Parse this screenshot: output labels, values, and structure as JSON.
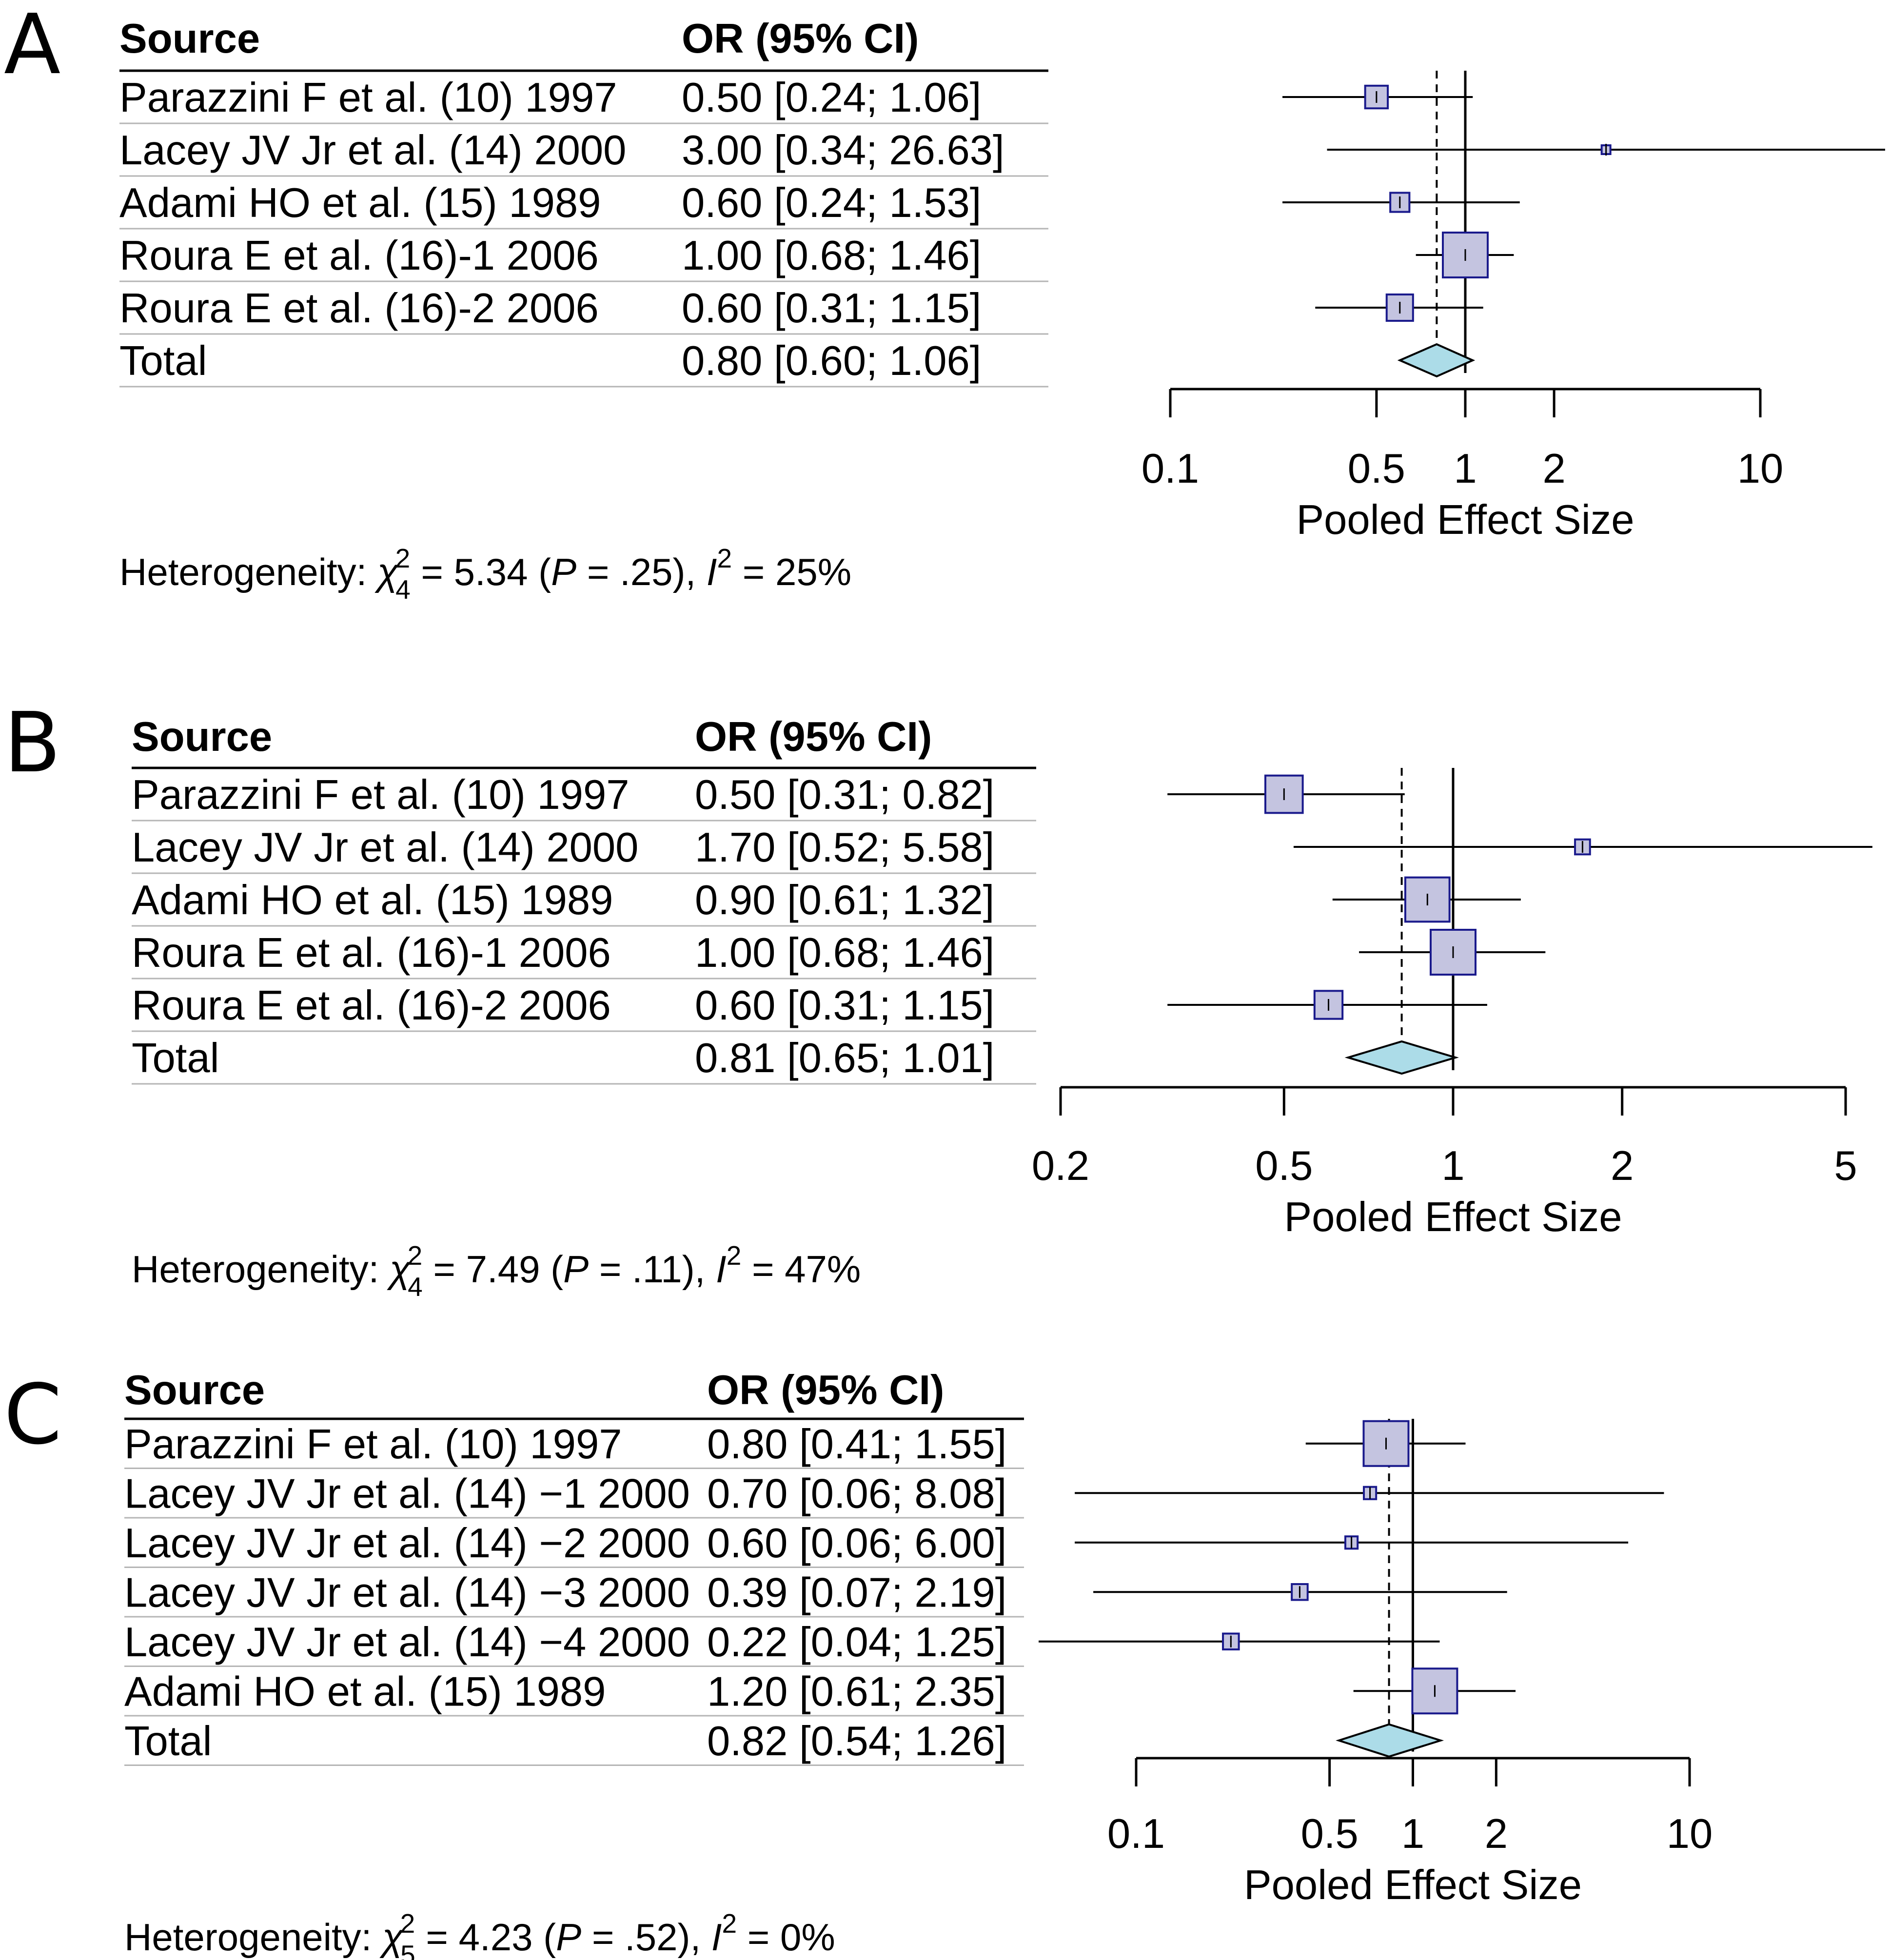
{
  "chart_data": [
    {
      "type": "forest",
      "panel_label": "A",
      "headers": {
        "source": "Source",
        "estimate": "OR (95% CI)"
      },
      "studies": [
        {
          "source": "Parazzini F et al. (10) 1997",
          "ci_text": "0.50 [0.24;  1.06]",
          "or": 0.5,
          "lower": 0.24,
          "upper": 1.06,
          "weight": 14
        },
        {
          "source": "Lacey JV Jr et al. (14) 2000",
          "ci_text": "3.00 [0.34; 26.63]",
          "or": 3.0,
          "lower": 0.34,
          "upper": 26.63,
          "weight": 2
        },
        {
          "source": "Adami HO et al. (15) 1989",
          "ci_text": "0.60 [0.24;  1.53]",
          "or": 0.6,
          "lower": 0.24,
          "upper": 1.53,
          "weight": 10
        },
        {
          "source": "Roura E et al. (16)-1 2006",
          "ci_text": "1.00 [0.68;  1.46]",
          "or": 1.0,
          "lower": 0.68,
          "upper": 1.46,
          "weight": 55
        },
        {
          "source": "Roura E et al. (16)-2 2006",
          "ci_text": "0.60 [0.31;  1.15]",
          "or": 0.6,
          "lower": 0.31,
          "upper": 1.15,
          "weight": 19
        }
      ],
      "total": {
        "label": "Total",
        "ci_text": "0.80 [0.60;  1.06]",
        "or": 0.8,
        "lower": 0.6,
        "upper": 1.06
      },
      "axis": {
        "ticks": [
          0.1,
          0.5,
          1,
          2,
          10
        ],
        "tick_labels": [
          "0.1",
          "0.5",
          "1",
          "2",
          "10"
        ],
        "min": 0.1,
        "max": 10,
        "scale": "log",
        "label": "Pooled Effect Size"
      },
      "heterogeneity": {
        "prefix": "Heterogeneity: ",
        "chi_symbol": "χ",
        "chi_sup": "2",
        "df": "4",
        "chi_value": " = 5.34 (",
        "p_symbol": "P",
        "p_value": " = .25), ",
        "i_symbol": "I",
        "i_sup": "2",
        "i_value": " = 25%"
      }
    },
    {
      "type": "forest",
      "panel_label": "B",
      "headers": {
        "source": "Source",
        "estimate": "OR (95% CI)"
      },
      "studies": [
        {
          "source": "Parazzini F et al. (10) 1997",
          "ci_text": "0.50 [0.31; 0.82]",
          "or": 0.5,
          "lower": 0.31,
          "upper": 0.82,
          "weight": 25
        },
        {
          "source": "Lacey JV Jr et al. (14) 2000",
          "ci_text": "1.70 [0.52; 5.58]",
          "or": 1.7,
          "lower": 0.52,
          "upper": 5.58,
          "weight": 4
        },
        {
          "source": "Adami HO et al. (15) 1989",
          "ci_text": "0.90 [0.61; 1.32]",
          "or": 0.9,
          "lower": 0.61,
          "upper": 1.32,
          "weight": 35
        },
        {
          "source": "Roura E et al. (16)-1 2006",
          "ci_text": "1.00 [0.68; 1.46]",
          "or": 1.0,
          "lower": 0.68,
          "upper": 1.46,
          "weight": 36
        },
        {
          "source": "Roura E et al. (16)-2 2006",
          "ci_text": "0.60 [0.31; 1.15]",
          "or": 0.6,
          "lower": 0.31,
          "upper": 1.15,
          "weight": 14
        }
      ],
      "total": {
        "label": "Total",
        "ci_text": "0.81 [0.65; 1.01]",
        "or": 0.81,
        "lower": 0.65,
        "upper": 1.01
      },
      "axis": {
        "ticks": [
          0.2,
          0.5,
          1,
          2,
          5
        ],
        "tick_labels": [
          "0.2",
          "0.5",
          "1",
          "2",
          "5"
        ],
        "min": 0.2,
        "max": 5,
        "scale": "log",
        "label": "Pooled Effect Size"
      },
      "heterogeneity": {
        "prefix": "Heterogeneity: ",
        "chi_symbol": "χ",
        "chi_sup": "2",
        "df": "4",
        "chi_value": " = 7.49 (",
        "p_symbol": "P",
        "p_value": " = .11), ",
        "i_symbol": "I",
        "i_sup": "2",
        "i_value": " = 47%"
      }
    },
    {
      "type": "forest",
      "panel_label": "C",
      "headers": {
        "source": "Source",
        "estimate": "OR (95% CI)"
      },
      "studies": [
        {
          "source": "Parazzini F et al. (10) 1997",
          "ci_text": "0.80 [0.41; 1.55]",
          "or": 0.8,
          "lower": 0.41,
          "upper": 1.55,
          "weight": 40
        },
        {
          "source": "Lacey JV Jr et al. (14) −1 2000",
          "ci_text": "0.70 [0.06; 8.08]",
          "or": 0.7,
          "lower": 0.06,
          "upper": 8.08,
          "weight": 3
        },
        {
          "source": "Lacey JV Jr et al. (14) −2 2000",
          "ci_text": "0.60 [0.06; 6.00]",
          "or": 0.6,
          "lower": 0.06,
          "upper": 6.0,
          "weight": 3
        },
        {
          "source": "Lacey JV Jr et al. (14) −3 2000",
          "ci_text": "0.39 [0.07; 2.19]",
          "or": 0.39,
          "lower": 0.07,
          "upper": 2.19,
          "weight": 5
        },
        {
          "source": "Lacey JV Jr et al. (14) −4 2000",
          "ci_text": "0.22 [0.04; 1.25]",
          "or": 0.22,
          "lower": 0.04,
          "upper": 1.25,
          "weight": 5
        },
        {
          "source": "Adami HO et al. (15) 1989",
          "ci_text": "1.20 [0.61; 2.35]",
          "or": 1.2,
          "lower": 0.61,
          "upper": 2.35,
          "weight": 40
        }
      ],
      "total": {
        "label": "Total",
        "ci_text": "0.82 [0.54; 1.26]",
        "or": 0.82,
        "lower": 0.54,
        "upper": 1.26
      },
      "axis": {
        "ticks": [
          0.1,
          0.5,
          1,
          2,
          10
        ],
        "tick_labels": [
          "0.1",
          "0.5",
          "1",
          "2",
          "10"
        ],
        "min": 0.1,
        "max": 10,
        "scale": "log",
        "label": "Pooled Effect Size"
      },
      "heterogeneity": {
        "prefix": "Heterogeneity: ",
        "chi_symbol": "χ",
        "chi_sup": "2",
        "df": "5",
        "chi_value": " = 4.23 (",
        "p_symbol": "P",
        "p_value": " = .52), ",
        "i_symbol": "I",
        "i_sup": "2",
        "i_value": " = 0%"
      }
    }
  ],
  "colors": {
    "box_fill": "#c4c4e0",
    "box_stroke": "#1a1a8c",
    "diamond_fill": "#acdce8",
    "line": "#000000"
  }
}
